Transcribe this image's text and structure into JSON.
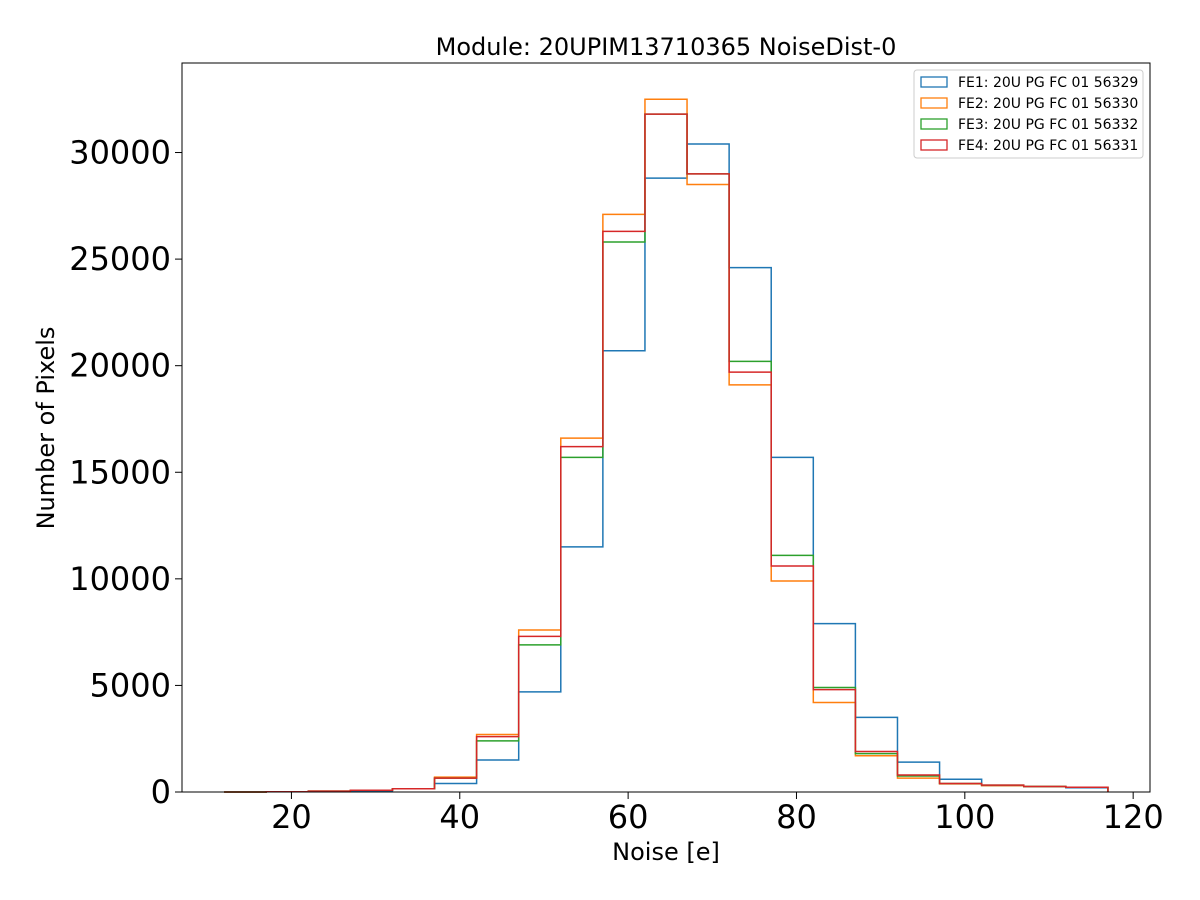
{
  "chart_data": {
    "type": "histogram",
    "title": "Module: 20UPIM13710365 NoiseDist-0",
    "xlabel": "Noise [e]",
    "ylabel": "Number of Pixels",
    "xlim": [
      7,
      122
    ],
    "ylim": [
      0,
      34200
    ],
    "xticks": [
      20,
      40,
      60,
      80,
      100,
      120
    ],
    "yticks": [
      0,
      5000,
      10000,
      15000,
      20000,
      25000,
      30000
    ],
    "xtick_labels": [
      "20",
      "40",
      "60",
      "80",
      "100",
      "120"
    ],
    "ytick_labels": [
      "0",
      "5000",
      "10000",
      "15000",
      "20000",
      "25000",
      "30000"
    ],
    "legend_position": "top-right",
    "bin_edges": [
      12,
      17,
      22,
      27,
      32,
      37,
      42,
      47,
      52,
      57,
      62,
      67,
      72,
      77,
      82,
      87,
      92,
      97,
      102,
      107,
      112,
      117
    ],
    "series": [
      {
        "name": "FE1: 20U PG FC 01 56329",
        "color": "#1f77b4",
        "values": [
          0,
          10,
          30,
          50,
          150,
          400,
          1500,
          4700,
          11500,
          20700,
          28800,
          30400,
          24600,
          15700,
          7900,
          3500,
          1400,
          600,
          300,
          250,
          200
        ]
      },
      {
        "name": "FE2: 20U PG FC 01 56330",
        "color": "#ff7f0e",
        "values": [
          0,
          10,
          40,
          80,
          150,
          700,
          2700,
          7600,
          16600,
          27100,
          32500,
          28500,
          19100,
          9900,
          4200,
          1700,
          650,
          380,
          300,
          260,
          220
        ]
      },
      {
        "name": "FE3: 20U PG FC 01 56332",
        "color": "#2ca02c",
        "values": [
          0,
          10,
          40,
          80,
          150,
          650,
          2400,
          6900,
          15700,
          25800,
          31800,
          29000,
          20200,
          11100,
          4900,
          1800,
          750,
          400,
          320,
          260,
          220
        ]
      },
      {
        "name": "FE4: 20U PG FC 01 56331",
        "color": "#d62728",
        "values": [
          0,
          10,
          40,
          80,
          150,
          650,
          2600,
          7300,
          16200,
          26300,
          31800,
          29000,
          19700,
          10600,
          4800,
          1900,
          800,
          400,
          320,
          260,
          220
        ]
      }
    ]
  }
}
